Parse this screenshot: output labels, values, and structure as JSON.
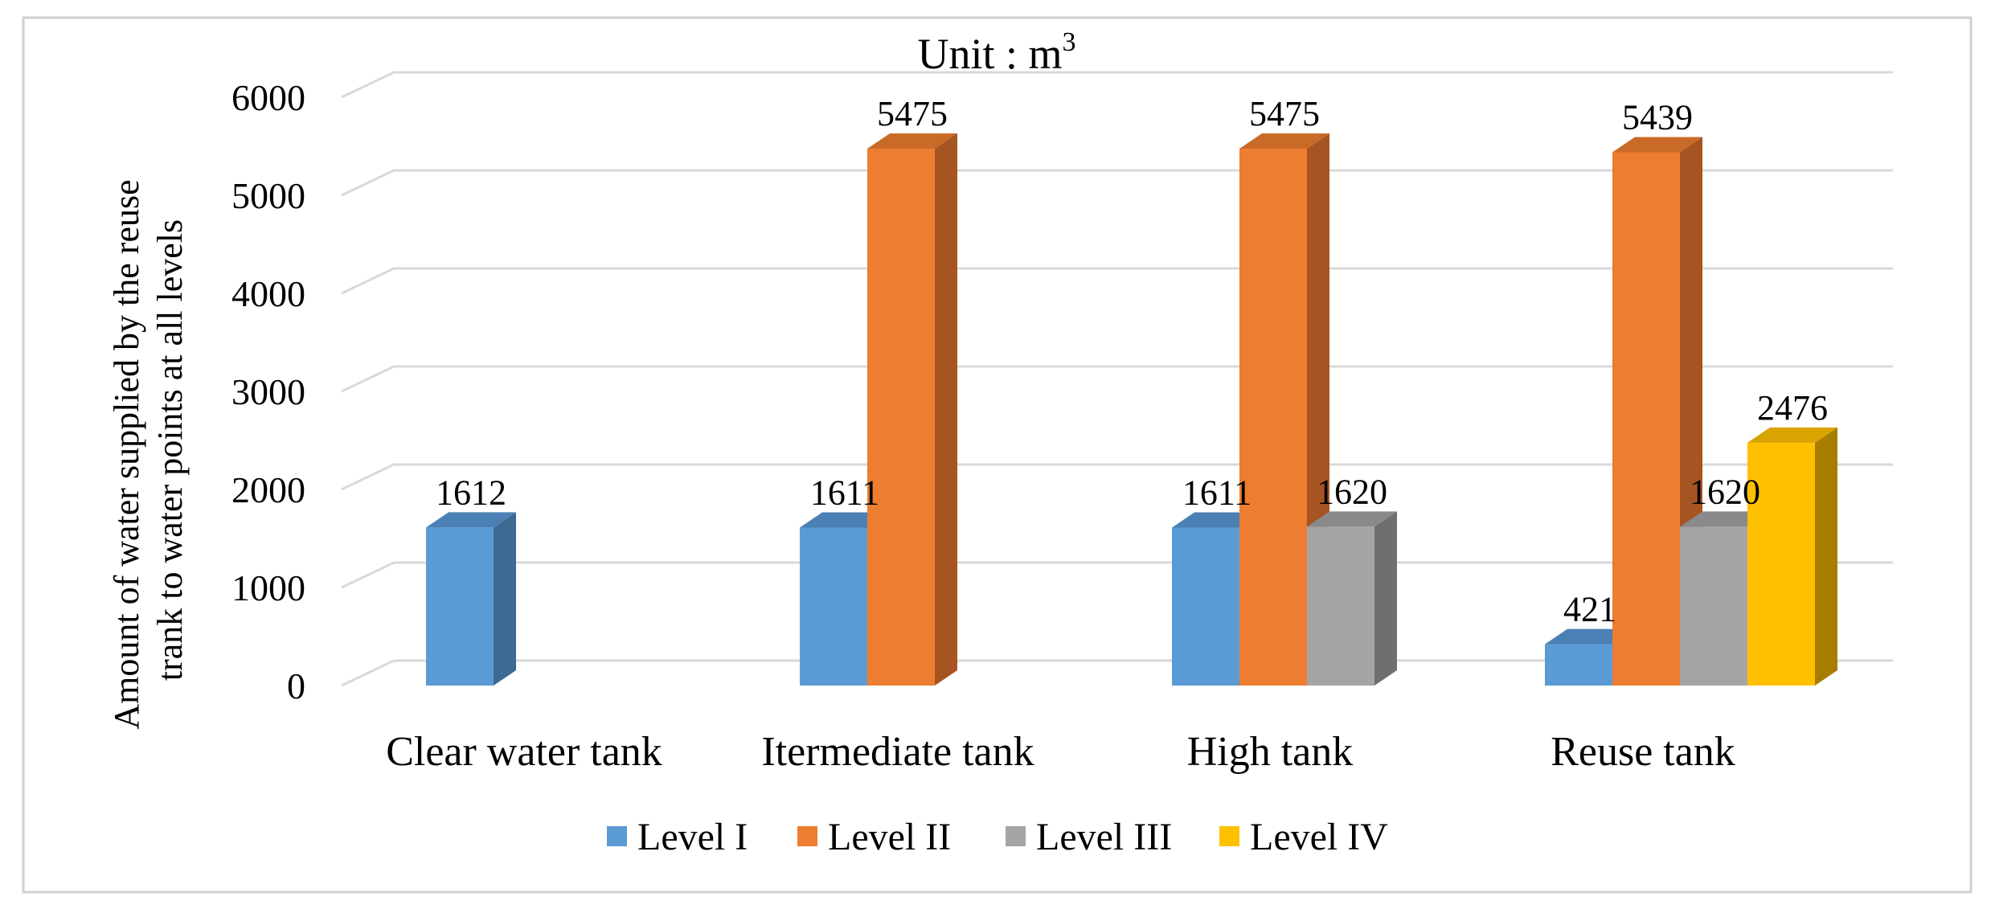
{
  "chart_data": {
    "type": "bar",
    "title": "Unit : m",
    "title_superscript": "3",
    "ylabel_line1": "Amount of water supplied by the reuse",
    "ylabel_line2": "trank to water points at all levels",
    "xlabel": "",
    "ylim": [
      0,
      6000
    ],
    "yticks": [
      0,
      1000,
      2000,
      3000,
      4000,
      5000,
      6000
    ],
    "grid": true,
    "legend_position": "bottom",
    "categories": [
      "Clear water tank",
      "Itermediate tank",
      "High tank",
      "Reuse tank"
    ],
    "series": [
      {
        "name": "Level I",
        "color": "#5B9BD5",
        "side": "#3C6A92",
        "top": "#4A80B4",
        "values": [
          1612,
          1611,
          1611,
          421
        ]
      },
      {
        "name": "Level II",
        "color": "#ED7D31",
        "side": "#A65421",
        "top": "#C96A29",
        "values": [
          null,
          5475,
          5475,
          5439
        ]
      },
      {
        "name": "Level III",
        "color": "#A5A5A5",
        "side": "#6F6F6F",
        "top": "#8A8A8A",
        "values": [
          null,
          null,
          1620,
          1620
        ]
      },
      {
        "name": "Level IV",
        "color": "#FFC000",
        "side": "#A87E00",
        "top": "#D9A300",
        "values": [
          null,
          null,
          null,
          2476
        ]
      }
    ]
  }
}
